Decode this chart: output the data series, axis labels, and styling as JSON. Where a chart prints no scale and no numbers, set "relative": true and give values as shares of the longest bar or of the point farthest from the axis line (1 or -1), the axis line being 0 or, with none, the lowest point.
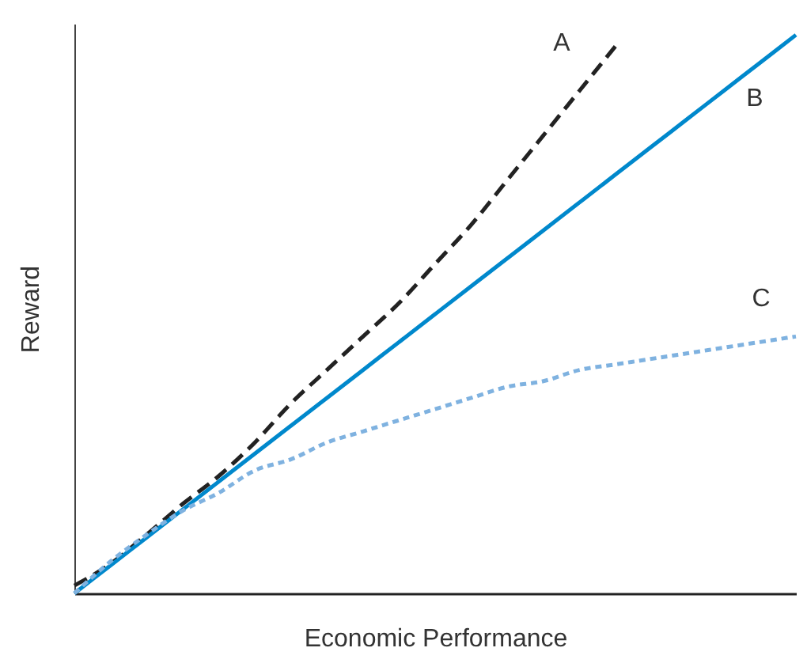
{
  "chart_data": {
    "type": "line",
    "relative": true,
    "xlabel": "Economic Performance",
    "ylabel": "Reward",
    "grid": false,
    "categories": [
      null,
      null,
      null,
      null,
      null,
      null,
      null,
      null,
      null,
      null,
      null,
      null,
      null,
      null,
      null,
      null,
      null,
      null,
      null,
      null,
      null
    ],
    "series": [
      {
        "name": "A",
        "color": "#222222",
        "line_style": "dashed",
        "values": [
          0.014,
          0.053,
          0.105,
          0.16,
          0.21,
          0.27,
          0.34,
          0.4,
          0.46,
          0.52,
          0.59,
          0.66,
          0.74,
          0.82,
          0.9,
          0.98,
          null,
          null,
          null,
          null,
          null
        ]
      },
      {
        "name": "B",
        "color": "#0088cc",
        "line_style": "solid",
        "values": [
          0,
          0.05,
          0.1,
          0.15,
          0.2,
          0.25,
          0.3,
          0.35,
          0.4,
          0.45,
          0.5,
          0.55,
          0.6,
          0.65,
          0.7,
          0.75,
          0.8,
          0.85,
          0.9,
          0.95,
          1
        ]
      },
      {
        "name": "C",
        "color": "#7fb2e0",
        "line_style": "dotted",
        "values": [
          0,
          0.057,
          0.105,
          0.148,
          0.18,
          0.22,
          0.24,
          0.27,
          0.29,
          0.31,
          0.33,
          0.35,
          0.37,
          0.38,
          0.4,
          0.41,
          0.42,
          0.43,
          0.44,
          0.45,
          0.46
        ]
      }
    ]
  }
}
